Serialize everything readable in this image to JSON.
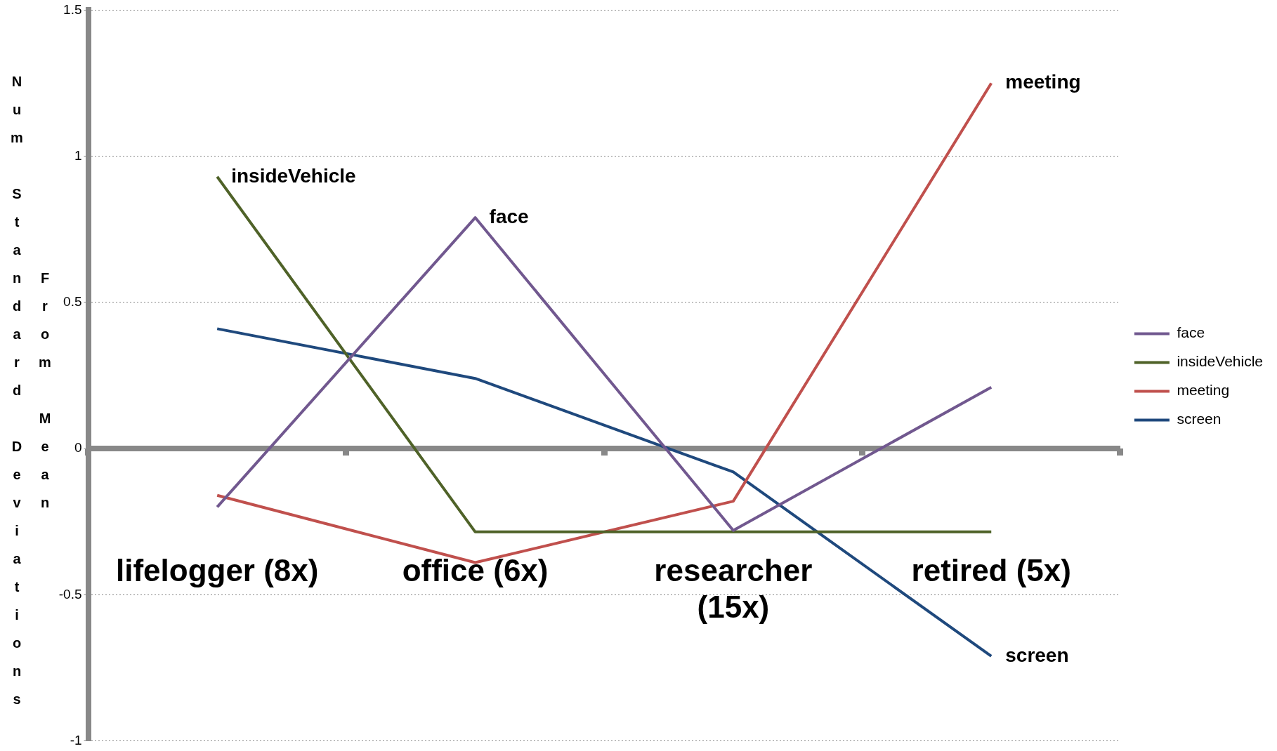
{
  "chart_data": {
    "type": "line",
    "ylabel": "Num Standard Deviations From Mean",
    "categories": [
      "lifelogger (8x)",
      "office (6x)",
      "researcher (15x)",
      "retired (5x)"
    ],
    "series": [
      {
        "name": "face",
        "color": "#71588f",
        "values": [
          -0.2,
          0.79,
          -0.28,
          0.21
        ]
      },
      {
        "name": "insideVehicle",
        "color": "#4f6228",
        "values": [
          0.93,
          -0.285,
          -0.285,
          -0.285
        ]
      },
      {
        "name": "meeting",
        "color": "#c0504d",
        "values": [
          -0.16,
          -0.39,
          -0.18,
          1.25
        ]
      },
      {
        "name": "screen",
        "color": "#1f497d",
        "values": [
          0.41,
          0.24,
          -0.08,
          -0.71
        ]
      }
    ],
    "annotations": [
      {
        "text": "insideVehicle",
        "x": "lifelogger (8x)",
        "y": 0.93
      },
      {
        "text": "face",
        "x": "office (6x)",
        "y": 0.79
      },
      {
        "text": "meeting",
        "x": "retired (5x)",
        "y": 1.25
      },
      {
        "text": "screen",
        "x": "retired (5x)",
        "y": -0.71
      }
    ],
    "ylim": [
      -1,
      1.5
    ],
    "yticks": [
      -1,
      -0.5,
      0,
      0.5,
      1,
      1.5
    ],
    "grid": "y",
    "legend": "right",
    "marker": "none"
  }
}
